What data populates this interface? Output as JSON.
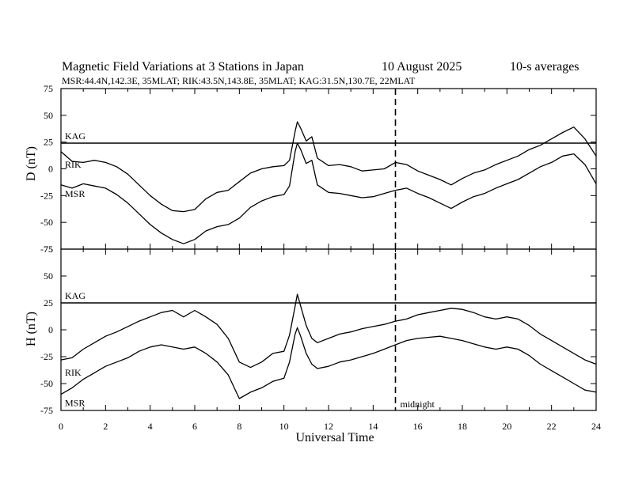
{
  "chart_data": {
    "type": "line",
    "title": "Magnetic Field Variations at 3 Stations in Japan",
    "date": "10 August 2025",
    "averaging": "10-s averages",
    "stations_info": "MSR:44.4N,142.3E, 35MLAT;  RIK:43.5N,143.8E, 35MLAT;  KAG:31.5N,130.7E, 22MLAT",
    "xlabel": "Universal Time",
    "xlim": [
      0,
      24
    ],
    "x_ticks": [
      0,
      2,
      4,
      6,
      8,
      10,
      12,
      14,
      16,
      18,
      20,
      22,
      24
    ],
    "x_tick_labels": [
      "0",
      "2",
      "4",
      "6",
      "8",
      "10",
      "12",
      "14",
      "16",
      "18",
      "20",
      "22",
      "24"
    ],
    "midnight_marker": {
      "x": 15,
      "label": "midnight"
    },
    "panels": [
      {
        "name": "D",
        "ylabel": "D (nT)",
        "ylim": [
          -75,
          75
        ],
        "y_ticks": [
          75,
          50,
          25,
          0,
          -25,
          -50,
          -75
        ],
        "y_tick_labels": [
          "75",
          "50",
          "25",
          "0",
          "-25",
          "-50",
          "-75"
        ],
        "series": [
          {
            "name": "KAG",
            "x": [
              0,
              24
            ],
            "values": [
              24,
              24
            ]
          },
          {
            "name": "RIK",
            "x": [
              0,
              0.5,
              1,
              1.5,
              2,
              2.5,
              3,
              3.5,
              4,
              4.5,
              5,
              5.5,
              6,
              6.5,
              7,
              7.5,
              8,
              8.5,
              9,
              9.5,
              10,
              10.25,
              10.5,
              10.6,
              10.75,
              11,
              11.25,
              11.5,
              12,
              12.5,
              13,
              13.5,
              14,
              14.5,
              15,
              15.5,
              16,
              16.5,
              17,
              17.5,
              18,
              18.5,
              19,
              19.5,
              20,
              20.5,
              21,
              21.5,
              22,
              22.5,
              23,
              23.5,
              24
            ],
            "values": [
              16,
              7,
              6,
              8,
              6,
              2,
              -5,
              -15,
              -25,
              -33,
              -39,
              -40,
              -38,
              -28,
              -22,
              -20,
              -12,
              -4,
              0,
              2,
              3,
              8,
              35,
              44,
              38,
              26,
              30,
              10,
              3,
              4,
              2,
              -2,
              -1,
              0,
              6,
              4,
              -2,
              -6,
              -10,
              -15,
              -9,
              -4,
              -1,
              4,
              8,
              12,
              18,
              22,
              28,
              34,
              39,
              28,
              12
            ]
          },
          {
            "name": "MSR",
            "x": [
              0,
              0.5,
              1,
              1.5,
              2,
              2.5,
              3,
              3.5,
              4,
              4.5,
              5,
              5.5,
              6,
              6.5,
              7,
              7.5,
              8,
              8.5,
              9,
              9.5,
              10,
              10.25,
              10.5,
              10.6,
              10.75,
              11,
              11.25,
              11.5,
              12,
              12.5,
              13,
              13.5,
              14,
              14.5,
              15,
              15.5,
              16,
              16.5,
              17,
              17.5,
              18,
              18.5,
              19,
              19.5,
              20,
              20.5,
              21,
              21.5,
              22,
              22.5,
              23,
              23.5,
              24
            ],
            "values": [
              -15,
              -18,
              -14,
              -16,
              -18,
              -24,
              -32,
              -42,
              -52,
              -60,
              -66,
              -70,
              -66,
              -58,
              -54,
              -52,
              -46,
              -36,
              -30,
              -26,
              -24,
              -16,
              16,
              24,
              18,
              5,
              8,
              -15,
              -22,
              -23,
              -25,
              -27,
              -26,
              -23,
              -20,
              -18,
              -23,
              -27,
              -32,
              -37,
              -31,
              -26,
              -23,
              -18,
              -14,
              -10,
              -4,
              2,
              6,
              12,
              14,
              4,
              -14
            ]
          }
        ]
      },
      {
        "name": "H",
        "ylabel": "H (nT)",
        "ylim": [
          -75,
          75
        ],
        "y_ticks": [
          75,
          50,
          25,
          0,
          -25,
          -50,
          -75
        ],
        "y_tick_labels": [
          "75",
          "50",
          "25",
          "0",
          "-25",
          "-50",
          "-75"
        ],
        "series": [
          {
            "name": "KAG",
            "x": [
              0,
              24
            ],
            "values": [
              25,
              25
            ]
          },
          {
            "name": "RIK",
            "x": [
              0,
              0.5,
              1,
              1.5,
              2,
              2.5,
              3,
              3.5,
              4,
              4.5,
              5,
              5.5,
              6,
              6.5,
              7,
              7.5,
              8,
              8.5,
              9,
              9.5,
              10,
              10.25,
              10.5,
              10.6,
              10.75,
              11,
              11.25,
              11.5,
              12,
              12.5,
              13,
              13.5,
              14,
              14.5,
              15,
              15.5,
              16,
              16.5,
              17,
              17.5,
              18,
              18.5,
              19,
              19.5,
              20,
              20.5,
              21,
              21.5,
              22,
              22.5,
              23,
              23.5,
              24
            ],
            "values": [
              -28,
              -26,
              -18,
              -12,
              -6,
              -2,
              3,
              8,
              12,
              16,
              18,
              12,
              18,
              12,
              5,
              -8,
              -30,
              -35,
              -30,
              -22,
              -20,
              -5,
              22,
              33,
              22,
              4,
              -8,
              -12,
              -8,
              -4,
              -2,
              1,
              3,
              5,
              8,
              10,
              14,
              16,
              18,
              20,
              19,
              16,
              12,
              10,
              12,
              10,
              4,
              -4,
              -10,
              -16,
              -22,
              -28,
              -32
            ]
          },
          {
            "name": "MSR",
            "x": [
              0,
              0.5,
              1,
              1.5,
              2,
              2.5,
              3,
              3.5,
              4,
              4.5,
              5,
              5.5,
              6,
              6.5,
              7,
              7.5,
              8,
              8.5,
              9,
              9.5,
              10,
              10.25,
              10.5,
              10.6,
              10.75,
              11,
              11.25,
              11.5,
              12,
              12.5,
              13,
              13.5,
              14,
              14.5,
              15,
              15.5,
              16,
              16.5,
              17,
              17.5,
              18,
              18.5,
              19,
              19.5,
              20,
              20.5,
              21,
              21.5,
              22,
              22.5,
              23,
              23.5,
              24
            ],
            "values": [
              -60,
              -54,
              -46,
              -40,
              -34,
              -30,
              -26,
              -20,
              -16,
              -14,
              -16,
              -18,
              -16,
              -22,
              -30,
              -42,
              -64,
              -58,
              -54,
              -48,
              -45,
              -30,
              -4,
              2,
              -6,
              -22,
              -32,
              -36,
              -34,
              -30,
              -28,
              -25,
              -22,
              -18,
              -14,
              -10,
              -8,
              -7,
              -6,
              -8,
              -10,
              -13,
              -16,
              -18,
              -16,
              -18,
              -24,
              -32,
              -38,
              -44,
              -50,
              -56,
              -58
            ]
          }
        ]
      }
    ]
  }
}
